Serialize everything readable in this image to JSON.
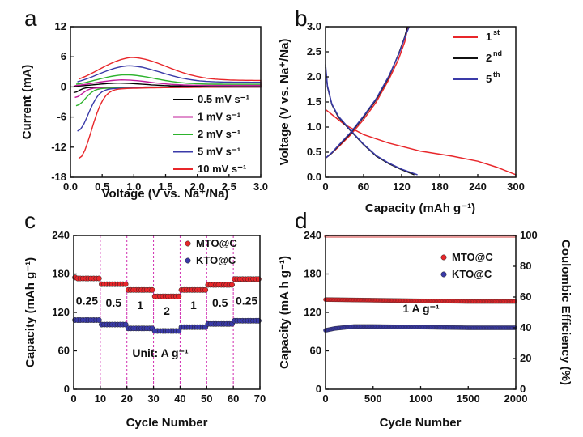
{
  "chart_data": [
    {
      "panel": "a",
      "type": "line",
      "xlabel": "Voltage (V vs. Na⁺/Na)",
      "ylabel": "Current (mA)",
      "xlim": [
        0,
        3.0
      ],
      "ylim": [
        -18,
        12
      ],
      "xticks": [
        "0.0",
        "0.5",
        "1.0",
        "1.5",
        "2.0",
        "2.5",
        "3.0"
      ],
      "yticks": [
        "-18",
        "-12",
        "-6",
        "0",
        "6",
        "12"
      ],
      "series": [
        {
          "name": "0.5 mV s⁻¹",
          "rate": 0.5,
          "color": "#000000"
        },
        {
          "name": "1 mV s⁻¹",
          "rate": 1,
          "color": "#c21c9a"
        },
        {
          "name": "2 mV s⁻¹",
          "rate": 2,
          "color": "#2db32d"
        },
        {
          "name": "5 mV s⁻¹",
          "rate": 5,
          "color": "#3a3aa8"
        },
        {
          "name": "10 mV s⁻¹",
          "rate": 10,
          "color": "#e8262a"
        }
      ],
      "anodic_peak_current": [
        0.6,
        1.1,
        1.9,
        3.3,
        4.6
      ],
      "cathodic_min_current": [
        -1.0,
        -1.8,
        -3.3,
        -8.2,
        -13.5
      ]
    },
    {
      "panel": "b",
      "type": "line",
      "xlabel": "Capacity (mAh g⁻¹)",
      "ylabel": "Voltage (V vs. Na⁺/Na)",
      "xlim": [
        0,
        300
      ],
      "ylim": [
        0,
        3.0
      ],
      "xticks": [
        "0",
        "60",
        "120",
        "180",
        "240",
        "300"
      ],
      "yticks": [
        "0.0",
        "0.5",
        "1.0",
        "1.5",
        "2.0",
        "2.5",
        "3.0"
      ],
      "series": [
        {
          "name": "1",
          "sup": "st",
          "color": "#e8262a",
          "discharge": [
            [
              0,
              1.35
            ],
            [
              10,
              1.25
            ],
            [
              30,
              1.05
            ],
            [
              60,
              0.85
            ],
            [
              100,
              0.68
            ],
            [
              150,
              0.52
            ],
            [
              200,
              0.42
            ],
            [
              240,
              0.32
            ],
            [
              270,
              0.2
            ],
            [
              300,
              0.05
            ]
          ],
          "charge": [
            [
              0,
              0.38
            ],
            [
              10,
              0.48
            ],
            [
              20,
              0.6
            ],
            [
              40,
              0.85
            ],
            [
              60,
              1.15
            ],
            [
              80,
              1.5
            ],
            [
              100,
              1.95
            ],
            [
              115,
              2.35
            ],
            [
              125,
              2.7
            ],
            [
              130,
              3.0
            ]
          ]
        },
        {
          "name": "2",
          "sup": "nd",
          "color": "#111111",
          "discharge": [
            [
              0,
              2.2
            ],
            [
              3,
              1.8
            ],
            [
              10,
              1.45
            ],
            [
              20,
              1.2
            ],
            [
              40,
              0.92
            ],
            [
              60,
              0.65
            ],
            [
              80,
              0.42
            ],
            [
              100,
              0.27
            ],
            [
              120,
              0.15
            ],
            [
              140,
              0.05
            ]
          ],
          "charge": [
            [
              0,
              0.38
            ],
            [
              10,
              0.48
            ],
            [
              20,
              0.62
            ],
            [
              40,
              0.88
            ],
            [
              60,
              1.2
            ],
            [
              80,
              1.55
            ],
            [
              100,
              2.0
            ],
            [
              115,
              2.45
            ],
            [
              125,
              2.8
            ],
            [
              129,
              3.0
            ]
          ]
        },
        {
          "name": "5",
          "sup": "th",
          "color": "#3a3aa8",
          "discharge": [
            [
              0,
              2.25
            ],
            [
              3,
              1.82
            ],
            [
              10,
              1.46
            ],
            [
              20,
              1.22
            ],
            [
              40,
              0.93
            ],
            [
              60,
              0.66
            ],
            [
              80,
              0.43
            ],
            [
              100,
              0.28
            ],
            [
              120,
              0.16
            ],
            [
              145,
              0.05
            ]
          ],
          "charge": [
            [
              0,
              0.38
            ],
            [
              10,
              0.49
            ],
            [
              20,
              0.63
            ],
            [
              40,
              0.9
            ],
            [
              60,
              1.22
            ],
            [
              80,
              1.57
            ],
            [
              100,
              2.02
            ],
            [
              116,
              2.47
            ],
            [
              126,
              2.82
            ],
            [
              132,
              3.0
            ]
          ]
        }
      ]
    },
    {
      "panel": "c",
      "type": "scatter",
      "xlabel": "Cycle Number",
      "ylabel": "Capacity (mAh g⁻¹)",
      "xlim": [
        0,
        70
      ],
      "ylim": [
        0,
        240
      ],
      "xticks": [
        "0",
        "10",
        "20",
        "30",
        "40",
        "50",
        "60",
        "70"
      ],
      "yticks": [
        "0",
        "60",
        "120",
        "180",
        "240"
      ],
      "boundaries": [
        10,
        20,
        30,
        40,
        50,
        60
      ],
      "rates": [
        "0.25",
        "0.5",
        "1",
        "2",
        "1",
        "0.5",
        "0.25"
      ],
      "rate_label_value": [
        132,
        129,
        125,
        116,
        125,
        129,
        132
      ],
      "unit_label": "Unit: A g⁻¹",
      "series": [
        {
          "name": "MTO@C",
          "color": "#e8262a",
          "segment_values": [
            173,
            164,
            155,
            145,
            155,
            163,
            172
          ]
        },
        {
          "name": "KTO@C",
          "color": "#3a3aa8",
          "segment_values": [
            108,
            101,
            95,
            91,
            97,
            102,
            107
          ]
        }
      ]
    },
    {
      "panel": "d",
      "type": "scatter",
      "xlabel": "Cycle Number",
      "ylabel": "Capacity (mA h g⁻¹)",
      "y2label": "Coulombic Efficiency (%)",
      "xlim": [
        0,
        2000
      ],
      "ylim": [
        0,
        240
      ],
      "y2lim": [
        0,
        100
      ],
      "xticks": [
        "0",
        "500",
        "1000",
        "1500",
        "2000"
      ],
      "yticks": [
        "0",
        "60",
        "120",
        "180",
        "240"
      ],
      "y2ticks": [
        "0",
        "20",
        "40",
        "60",
        "80",
        "100"
      ],
      "annotation": "1 A g⁻¹",
      "coulombic_efficiency": 99.5,
      "series": [
        {
          "name": "MTO@C",
          "color": "#e8262a",
          "points": [
            [
              0,
              140
            ],
            [
              500,
              139
            ],
            [
              1000,
              138
            ],
            [
              1500,
              137
            ],
            [
              2000,
              137
            ]
          ]
        },
        {
          "name": "KTO@C",
          "color": "#3a3aa8",
          "points": [
            [
              0,
              92
            ],
            [
              100,
              95
            ],
            [
              300,
              98
            ],
            [
              500,
              98
            ],
            [
              1000,
              97
            ],
            [
              1500,
              96
            ],
            [
              2000,
              96
            ]
          ]
        }
      ]
    }
  ],
  "panel_labels": {
    "a": "a",
    "b": "b",
    "c": "c",
    "d": "d"
  },
  "colors": {
    "ce": "#e89a9a"
  }
}
